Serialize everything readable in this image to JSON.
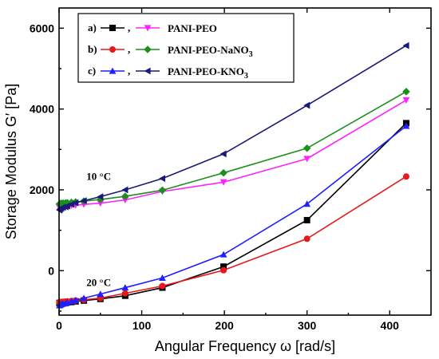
{
  "chart_data": {
    "type": "line",
    "xlabel": "Angular Frequency ω [rad/s]",
    "ylabel": "Storage Modulus G′ [Pa]",
    "xlim": [
      0,
      450
    ],
    "ylim": [
      -1100,
      6500
    ],
    "xticks": [
      0,
      100,
      200,
      300,
      400
    ],
    "xtick_labels": [
      "0",
      "100",
      "200",
      "300",
      "400"
    ],
    "yticks": [
      0,
      2000,
      4000,
      6000
    ],
    "ytick_labels": [
      "0",
      "2000",
      "4000",
      "6000"
    ],
    "grid": false,
    "legend_position": "top-left",
    "legend_rows": [
      {
        "tag": "a)",
        "suffix": ",",
        "text": "PANI-PEO",
        "subscript": ""
      },
      {
        "tag": "b)",
        "suffix": ",",
        "text": "PANI-PEO-NaNO",
        "subscript": "3"
      },
      {
        "tag": "c)",
        "suffix": ",",
        "text": "PANI-PEO-KNO",
        "subscript": "3"
      }
    ],
    "annotations": [
      {
        "text": "10 °C",
        "x": 48,
        "y": 2250
      },
      {
        "text": "20 °C",
        "x": 48,
        "y": -380
      }
    ],
    "series": [
      {
        "color": "#000000",
        "marker": "square",
        "legend_row": 0,
        "x": [
          0.5,
          1,
          2,
          3,
          5,
          8,
          10,
          15,
          20,
          30,
          50,
          80,
          125,
          199,
          300,
          420
        ],
        "y": [
          -800,
          -800,
          -800,
          -800,
          -795,
          -790,
          -785,
          -775,
          -760,
          -740,
          -700,
          -620,
          -420,
          100,
          1250,
          3650
        ]
      },
      {
        "color": "#e8191d",
        "marker": "circle",
        "legend_row": 1,
        "x": [
          0.5,
          1,
          2,
          3,
          5,
          8,
          10,
          15,
          20,
          30,
          50,
          80,
          125,
          199,
          300,
          420
        ],
        "y": [
          -780,
          -780,
          -775,
          -775,
          -770,
          -765,
          -760,
          -750,
          -740,
          -720,
          -680,
          -560,
          -380,
          10,
          790,
          2330
        ]
      },
      {
        "color": "#1f1fff",
        "marker": "triangle-up",
        "legend_row": 2,
        "x": [
          0.5,
          1,
          2,
          3,
          5,
          8,
          10,
          15,
          20,
          30,
          50,
          80,
          125,
          199,
          300,
          420
        ],
        "y": [
          -860,
          -850,
          -840,
          -830,
          -820,
          -810,
          -790,
          -760,
          -730,
          -680,
          -580,
          -420,
          -180,
          400,
          1650,
          3580
        ]
      },
      {
        "color": "#ff22ff",
        "marker": "triangle-down",
        "legend_row": 0,
        "x": [
          0.5,
          1,
          2,
          3,
          5,
          8,
          10,
          15,
          20,
          30,
          50,
          80,
          125,
          199,
          300,
          420
        ],
        "y": [
          1560,
          1570,
          1580,
          1585,
          1590,
          1595,
          1600,
          1610,
          1620,
          1640,
          1670,
          1750,
          1960,
          2190,
          2770,
          4220
        ]
      },
      {
        "color": "#1a8f1a",
        "marker": "diamond",
        "legend_row": 1,
        "x": [
          0.5,
          1,
          2,
          3,
          5,
          8,
          10,
          15,
          20,
          30,
          50,
          80,
          125,
          199,
          300,
          420
        ],
        "y": [
          1650,
          1655,
          1660,
          1665,
          1670,
          1675,
          1680,
          1690,
          1700,
          1720,
          1760,
          1840,
          1990,
          2420,
          3030,
          4430
        ]
      },
      {
        "color": "#1a1a7a",
        "marker": "triangle-left",
        "legend_row": 2,
        "x": [
          0.5,
          1,
          2,
          3,
          5,
          8,
          10,
          15,
          20,
          30,
          50,
          80,
          125,
          199,
          300,
          420
        ],
        "y": [
          1500,
          1520,
          1540,
          1555,
          1570,
          1580,
          1600,
          1640,
          1680,
          1730,
          1830,
          2000,
          2280,
          2890,
          4090,
          5570
        ]
      }
    ]
  }
}
